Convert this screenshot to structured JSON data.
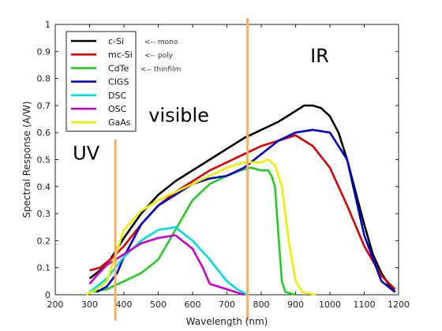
{
  "chart_data": {
    "type": "line",
    "title": "",
    "xlabel": "Wavelength (nm)",
    "ylabel": "Spectral Response (A/W)",
    "xlim": [
      200,
      1200
    ],
    "ylim": [
      0,
      1
    ],
    "x_ticks": [
      200,
      300,
      400,
      500,
      600,
      700,
      800,
      900,
      1000,
      1100,
      1200
    ],
    "y_ticks": [
      0,
      0.1,
      0.2,
      0.3,
      0.4,
      0.5,
      0.6,
      0.7,
      0.8,
      0.9,
      1
    ],
    "grid": false,
    "legend_position": "top-left",
    "series": [
      {
        "name": "c-Si",
        "color": "#000000",
        "x": [
          300,
          330,
          360,
          400,
          450,
          500,
          550,
          600,
          650,
          700,
          750,
          800,
          850,
          900,
          925,
          950,
          975,
          1000,
          1025,
          1050,
          1075,
          1100,
          1125,
          1150,
          1175,
          1190
        ],
        "y": [
          0.06,
          0.09,
          0.13,
          0.21,
          0.3,
          0.37,
          0.42,
          0.46,
          0.5,
          0.54,
          0.58,
          0.61,
          0.64,
          0.68,
          0.7,
          0.7,
          0.69,
          0.66,
          0.6,
          0.5,
          0.38,
          0.26,
          0.15,
          0.08,
          0.03,
          0.01
        ]
      },
      {
        "name": "mc-Si",
        "color": "#dd0000",
        "x": [
          300,
          330,
          360,
          400,
          450,
          500,
          550,
          600,
          650,
          700,
          750,
          800,
          850,
          900,
          950,
          1000,
          1050,
          1100,
          1150,
          1190
        ],
        "y": [
          0.09,
          0.1,
          0.13,
          0.18,
          0.26,
          0.33,
          0.38,
          0.42,
          0.46,
          0.49,
          0.52,
          0.55,
          0.57,
          0.59,
          0.55,
          0.47,
          0.33,
          0.18,
          0.07,
          0.02
        ]
      },
      {
        "name": "CdTe",
        "color": "#22cc22",
        "x": [
          300,
          350,
          400,
          450,
          500,
          550,
          600,
          650,
          700,
          740,
          770,
          800,
          820,
          830,
          840,
          850,
          860,
          870,
          900
        ],
        "y": [
          0.01,
          0.02,
          0.05,
          0.08,
          0.13,
          0.24,
          0.35,
          0.41,
          0.44,
          0.46,
          0.47,
          0.46,
          0.46,
          0.44,
          0.4,
          0.22,
          0.05,
          0.01,
          0.0
        ]
      },
      {
        "name": "CIGS",
        "color": "#0000cc",
        "x": [
          320,
          350,
          380,
          400,
          450,
          500,
          550,
          600,
          650,
          700,
          750,
          800,
          850,
          900,
          950,
          1000,
          1050,
          1100,
          1150,
          1190
        ],
        "y": [
          0.01,
          0.03,
          0.08,
          0.14,
          0.26,
          0.33,
          0.37,
          0.41,
          0.43,
          0.44,
          0.47,
          0.52,
          0.57,
          0.6,
          0.61,
          0.6,
          0.5,
          0.22,
          0.05,
          0.01
        ]
      },
      {
        "name": "DSC",
        "color": "#00dddd",
        "x": [
          300,
          350,
          400,
          450,
          500,
          550,
          600,
          650,
          700,
          730,
          760
        ],
        "y": [
          0.01,
          0.06,
          0.14,
          0.2,
          0.24,
          0.25,
          0.2,
          0.13,
          0.05,
          0.02,
          0.0
        ]
      },
      {
        "name": "OSC",
        "color": "#cc00cc",
        "x": [
          300,
          320,
          350,
          400,
          450,
          500,
          550,
          600,
          630,
          650,
          700,
          750
        ],
        "y": [
          0.04,
          0.07,
          0.11,
          0.15,
          0.19,
          0.21,
          0.22,
          0.17,
          0.1,
          0.04,
          0.02,
          0.0
        ]
      },
      {
        "name": "GaAs",
        "color": "#eeee00",
        "x": [
          290,
          320,
          350,
          400,
          450,
          500,
          550,
          600,
          650,
          700,
          750,
          780,
          800,
          820,
          840,
          860,
          880,
          900,
          920,
          960
        ],
        "y": [
          0.0,
          0.02,
          0.05,
          0.24,
          0.31,
          0.35,
          0.38,
          0.41,
          0.44,
          0.47,
          0.49,
          0.49,
          0.49,
          0.5,
          0.48,
          0.4,
          0.2,
          0.05,
          0.01,
          0.0
        ]
      }
    ],
    "vertical_lines": [
      {
        "x": 375,
        "color": "#f5b060"
      },
      {
        "x": 760,
        "color": "#f5b060"
      }
    ],
    "region_labels": [
      {
        "text": "UV",
        "x": 290,
        "y": 0.5
      },
      {
        "text": "visible",
        "x": 560,
        "y": 0.64
      },
      {
        "text": "IR",
        "x": 970,
        "y": 0.86
      }
    ],
    "legend_notes": [
      {
        "text": "<-- mono",
        "series": "c-Si"
      },
      {
        "text": "<-- poly",
        "series": "mc-Si"
      },
      {
        "text": "<-- thinfilm",
        "series": "CdTe"
      }
    ]
  }
}
